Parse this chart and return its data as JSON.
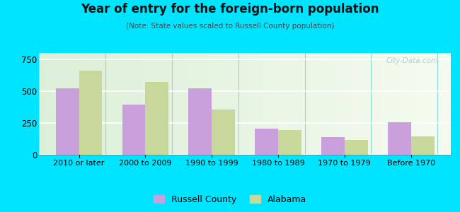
{
  "title": "Year of entry for the foreign-born population",
  "subtitle": "(Note: State values scaled to Russell County population)",
  "categories": [
    "2010 or later",
    "2000 to 2009",
    "1990 to 1999",
    "1980 to 1989",
    "1970 to 1979",
    "Before 1970"
  ],
  "russell_county": [
    520,
    395,
    525,
    205,
    140,
    255
  ],
  "alabama": [
    660,
    570,
    355,
    195,
    115,
    145
  ],
  "russell_color": "#c9a0dc",
  "alabama_color": "#c8d89a",
  "background_outer": "#00e5ff",
  "background_inner_left": "#e8f5e0",
  "background_inner_right": "#f8fcf0",
  "ylim": [
    0,
    800
  ],
  "yticks": [
    0,
    250,
    500,
    750
  ],
  "bar_width": 0.35,
  "legend_labels": [
    "Russell County",
    "Alabama"
  ],
  "watermark": "City-Data.com"
}
